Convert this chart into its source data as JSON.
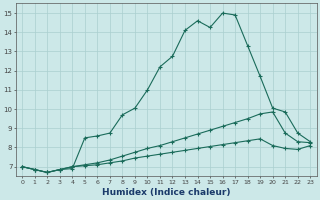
{
  "xlabel": "Humidex (Indice chaleur)",
  "background_color": "#cce8e8",
  "grid_color": "#aacfcf",
  "line_color": "#1a6b5a",
  "xlim": [
    -0.5,
    23.5
  ],
  "ylim": [
    6.5,
    15.5
  ],
  "xticks": [
    0,
    1,
    2,
    3,
    4,
    5,
    6,
    7,
    8,
    9,
    10,
    11,
    12,
    13,
    14,
    15,
    16,
    17,
    18,
    19,
    20,
    21,
    22,
    23
  ],
  "yticks": [
    7,
    8,
    9,
    10,
    11,
    12,
    13,
    14,
    15
  ],
  "line1_x": [
    0,
    1,
    2,
    3,
    4,
    5,
    6,
    7,
    8,
    9,
    10,
    11,
    12,
    13,
    14,
    15,
    16,
    17,
    18,
    19,
    20,
    21,
    22,
    23
  ],
  "line1_y": [
    7.0,
    6.85,
    6.7,
    6.85,
    6.9,
    8.5,
    8.6,
    8.75,
    9.7,
    10.05,
    11.0,
    12.2,
    12.75,
    14.1,
    14.6,
    14.25,
    15.0,
    14.9,
    13.3,
    11.7,
    10.05,
    9.85,
    8.75,
    8.3
  ],
  "line2_x": [
    0,
    1,
    2,
    3,
    4,
    5,
    6,
    7,
    8,
    9,
    10,
    11,
    12,
    13,
    14,
    15,
    16,
    17,
    18,
    19,
    20,
    21,
    22,
    23
  ],
  "line2_y": [
    7.0,
    6.85,
    6.7,
    6.85,
    7.0,
    7.1,
    7.2,
    7.35,
    7.55,
    7.75,
    7.95,
    8.1,
    8.3,
    8.5,
    8.7,
    8.9,
    9.1,
    9.3,
    9.5,
    9.75,
    9.85,
    8.75,
    8.3,
    8.25
  ],
  "line3_x": [
    0,
    1,
    2,
    3,
    4,
    5,
    6,
    7,
    8,
    9,
    10,
    11,
    12,
    13,
    14,
    15,
    16,
    17,
    18,
    19,
    20,
    21,
    22,
    23
  ],
  "line3_y": [
    7.0,
    6.85,
    6.7,
    6.85,
    7.0,
    7.05,
    7.1,
    7.2,
    7.3,
    7.45,
    7.55,
    7.65,
    7.75,
    7.85,
    7.95,
    8.05,
    8.15,
    8.25,
    8.35,
    8.45,
    8.1,
    7.95,
    7.9,
    8.1
  ]
}
